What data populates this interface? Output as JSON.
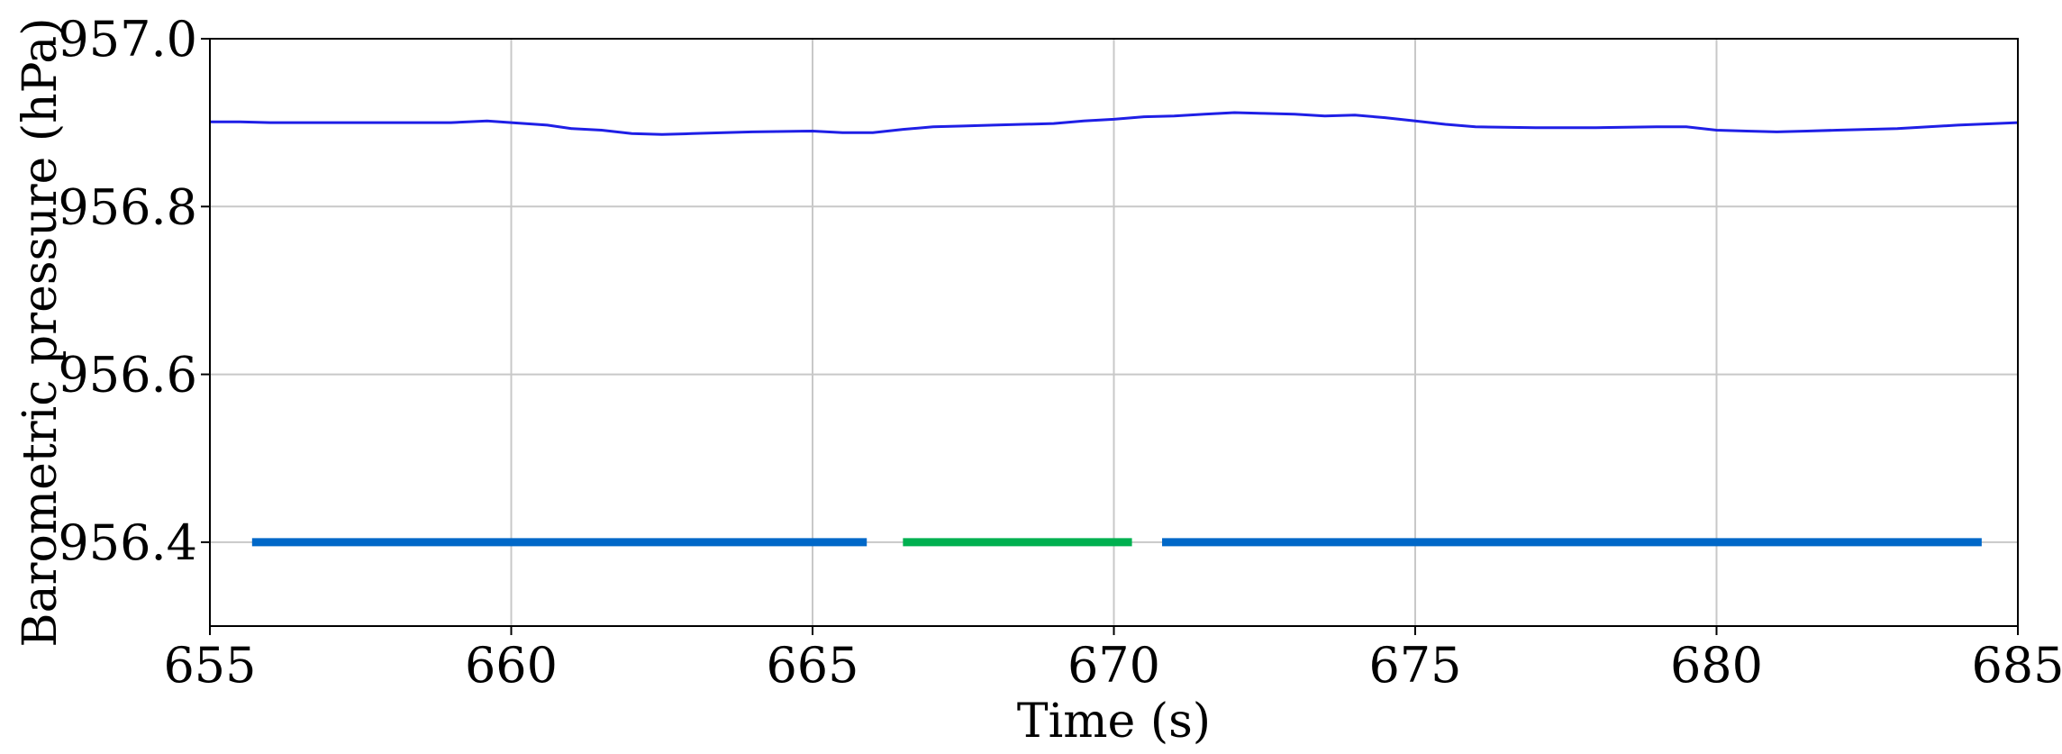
{
  "chart_data": {
    "type": "line",
    "title": "",
    "xlabel": "Time (s)",
    "ylabel": "Barometric pressure (hPa)",
    "xlim": [
      655,
      685
    ],
    "ylim": [
      956.3,
      957.0
    ],
    "xticks": [
      655,
      660,
      665,
      670,
      675,
      680,
      685
    ],
    "xtick_labels": [
      "655",
      "660",
      "665",
      "670",
      "675",
      "680",
      "685"
    ],
    "yticks": [
      956.4,
      956.6,
      956.8,
      957.0
    ],
    "ytick_labels": [
      "956.4",
      "956.6",
      "956.8",
      "957.0"
    ],
    "grid": true,
    "legend": "none",
    "series": [
      {
        "color": "#1f1fe6",
        "x": [
          655,
          655.5,
          656,
          657,
          658,
          659,
          659.6,
          660,
          660.6,
          661,
          661.5,
          662,
          662.5,
          663,
          664,
          665,
          665.5,
          666,
          666.5,
          667,
          667.5,
          668,
          669,
          669.5,
          670,
          670.5,
          671,
          671.5,
          672,
          672.5,
          673,
          673.5,
          674,
          674.5,
          675,
          675.5,
          676,
          677,
          678,
          679,
          679.5,
          680,
          680.5,
          681,
          681.5,
          682,
          683,
          684,
          685
        ],
        "y": [
          956.901,
          956.901,
          956.9,
          956.9,
          956.9,
          956.9,
          956.902,
          956.9,
          956.897,
          956.893,
          956.891,
          956.887,
          956.886,
          956.887,
          956.889,
          956.89,
          956.888,
          956.888,
          956.892,
          956.895,
          956.896,
          956.897,
          956.899,
          956.902,
          956.904,
          956.907,
          956.908,
          956.91,
          956.912,
          956.911,
          956.91,
          956.908,
          956.909,
          956.906,
          956.902,
          956.898,
          956.895,
          956.894,
          956.894,
          956.895,
          956.895,
          956.891,
          956.89,
          956.889,
          956.89,
          956.891,
          956.893,
          956.897,
          956.9
        ]
      }
    ],
    "segments": [
      {
        "x_start": 655.7,
        "x_end": 665.9,
        "y": 956.4,
        "color": "#0068c8"
      },
      {
        "x_start": 666.5,
        "x_end": 670.3,
        "y": 956.4,
        "color": "#00b050"
      },
      {
        "x_start": 670.8,
        "x_end": 684.4,
        "y": 956.4,
        "color": "#0068c8"
      }
    ]
  }
}
